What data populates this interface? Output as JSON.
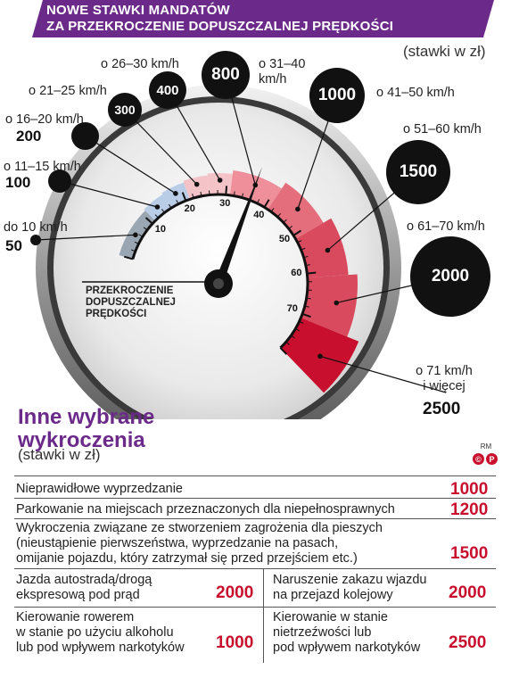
{
  "header": {
    "title_line1": "NOWE STAWKI MANDATÓW",
    "title_line2": "ZA PRZEKROCZENIE DOPUSZCZALNEJ PRĘDKOŚCI",
    "rates_note": "(stawki w zł)"
  },
  "speed_fines": [
    {
      "range": "do 10 km/h",
      "amount": "50"
    },
    {
      "range": "o 11–15 km/h",
      "amount": "100"
    },
    {
      "range": "o 16–20 km/h",
      "amount": "200"
    },
    {
      "range": "o 21–25 km/h",
      "amount": "300"
    },
    {
      "range": "o 26–30 km/h",
      "amount": "400"
    },
    {
      "range_line1": "o 31–40",
      "range_line2": "km/h",
      "amount": "800"
    },
    {
      "range": "o 41–50 km/h",
      "amount": "1000"
    },
    {
      "range": "o 51–60 km/h",
      "amount": "1500"
    },
    {
      "range": "o 61–70 km/h",
      "amount": "2000"
    },
    {
      "range_line1": "o 71 km/h",
      "range_line2": "i więcej",
      "amount": "2500"
    }
  ],
  "gauge": {
    "label_line1": "PRZEKROCZENIE",
    "label_line2": "DOPUSZCZALNEJ",
    "label_line3": "PRĘDKOŚCI",
    "ticks": [
      "10",
      "20",
      "30",
      "40",
      "50",
      "60",
      "70"
    ],
    "needle_value_kmh": 36,
    "colors": {
      "band_gray": "#9aa6b2",
      "band_blue": "#b9cde6",
      "band_pink_light": "#f4c3c8",
      "band_pink": "#ee8f9a",
      "band_red_mid": "#e46e7c",
      "band_red": "#d94a5f",
      "band_red_deep": "#c8102e"
    }
  },
  "other_offences": {
    "title_line1": "Inne wybrane",
    "title_line2": "wykroczenia",
    "note": "(stawki w zł)",
    "accent_color": "#6b2a8a",
    "copyright_text": "RM",
    "copyright_marks": [
      "©",
      "P"
    ],
    "rows": [
      {
        "text": "Nieprawidłowe wyprzedzanie",
        "amount": "1000"
      },
      {
        "text": "Parkowanie na miejscach przeznaczonych dla niepełnosprawnych",
        "amount": "1200"
      },
      {
        "text_line1": "Wykroczenia związane ze stworzeniem zagrożenia dla pieszych",
        "text_line2": "(nieustąpienie pierwszeństwa, wyprzedzanie na pasach,",
        "text_line3": "omijanie pojazdu, który zatrzymał się przed przejściem etc.)",
        "amount": "1500"
      }
    ],
    "grid": [
      {
        "text_line1": "Jazda autostradą/drogą",
        "text_line2": "ekspresową pod prąd",
        "amount": "2000"
      },
      {
        "text_line1": "Naruszenie zakazu wjazdu",
        "text_line2": "na przejazd kolejowy",
        "amount": "2000"
      },
      {
        "text_line1": "Kierowanie rowerem",
        "text_line2": "w stanie po użyciu alkoholu",
        "text_line3": "lub pod wpływem narkotyków",
        "amount": "1000"
      },
      {
        "text_line1": "Kierowanie w stanie",
        "text_line2": "nietrzeźwości lub",
        "text_line3": "pod wpływem narkotyków",
        "amount": "2500"
      }
    ]
  }
}
